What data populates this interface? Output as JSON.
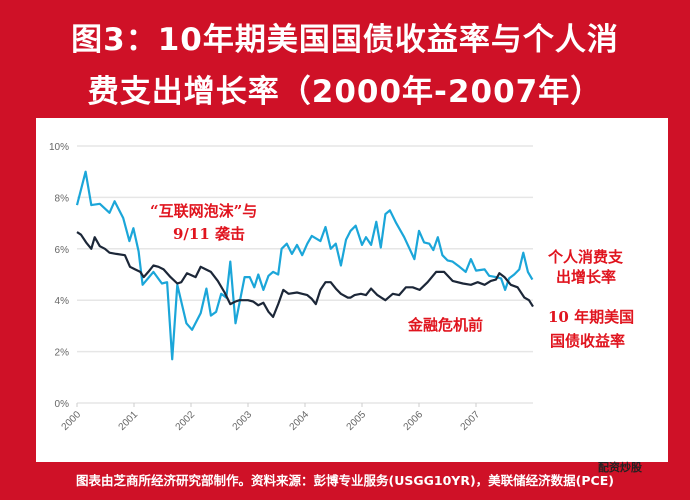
{
  "title": {
    "line1": "图3：10年期美国国债收益率与个人消",
    "line2": "费支出增长率（2000年-2007年）"
  },
  "annotations": {
    "bubble_line1": "“互联网泡沫”与",
    "bubble_line2": "9/11 袭击",
    "pre_crisis": "金融危机前",
    "pce_line1": "个人消费支",
    "pce_line2": "出增长率",
    "yield_line1": "10 年期美国",
    "yield_line2": "国债收益率"
  },
  "footer": "图表由芝商所经济研究部制作。资料来源：彭博专业服务(USGG10YR)，美联储经济数据(PCE)",
  "logo_text": "配资炒股",
  "chart_data": {
    "type": "line",
    "ylim": [
      0,
      10
    ],
    "xlim": [
      2000,
      2008
    ],
    "yticks": [
      "0%",
      "2%",
      "4%",
      "6%",
      "8%",
      "10%"
    ],
    "xticks": [
      "2000",
      "2001",
      "2002",
      "2003",
      "2004",
      "2005",
      "2006",
      "2007"
    ],
    "grid": true,
    "series": [
      {
        "name": "个人消费支出增长率",
        "color": "#1ba6d9",
        "x": [
          2000.0,
          2000.15,
          2000.25,
          2000.4,
          2000.57,
          2000.66,
          2000.81,
          2000.92,
          2000.99,
          2001.08,
          2001.15,
          2001.34,
          2001.49,
          2001.58,
          2001.67,
          2001.76,
          2001.92,
          2002.02,
          2002.17,
          2002.27,
          2002.35,
          2002.44,
          2002.53,
          2002.62,
          2002.69,
          2002.78,
          2002.94,
          2003.03,
          2003.11,
          2003.18,
          2003.27,
          2003.36,
          2003.44,
          2003.53,
          2003.59,
          2003.68,
          2003.77,
          2003.86,
          2003.95,
          2004.04,
          2004.12,
          2004.27,
          2004.36,
          2004.45,
          2004.54,
          2004.63,
          2004.72,
          2004.8,
          2004.89,
          2005.0,
          2005.07,
          2005.16,
          2005.25,
          2005.33,
          2005.41,
          2005.49,
          2005.6,
          2005.74,
          2005.92,
          2006.0,
          2006.09,
          2006.18,
          2006.25,
          2006.33,
          2006.41,
          2006.5,
          2006.59,
          2006.71,
          2006.82,
          2006.91,
          2007.0,
          2007.15,
          2007.23,
          2007.35,
          2007.44,
          2007.51,
          2007.58,
          2007.67,
          2007.76,
          2007.83,
          2007.91,
          2007.99
        ],
        "y": [
          7.7,
          9.0,
          7.7,
          7.75,
          7.4,
          7.85,
          7.2,
          6.3,
          6.8,
          5.9,
          4.6,
          5.1,
          4.65,
          4.7,
          1.7,
          4.6,
          3.1,
          2.85,
          3.5,
          4.45,
          3.4,
          3.55,
          4.25,
          4.1,
          5.5,
          3.1,
          4.9,
          4.9,
          4.5,
          5.0,
          4.4,
          4.95,
          5.1,
          5.0,
          6.0,
          6.2,
          5.8,
          6.15,
          5.75,
          6.2,
          6.5,
          6.3,
          6.85,
          6.0,
          6.2,
          5.35,
          6.35,
          6.7,
          6.9,
          6.15,
          6.45,
          6.15,
          7.05,
          6.05,
          7.35,
          7.5,
          7.0,
          6.45,
          5.6,
          6.7,
          6.25,
          6.2,
          5.95,
          6.45,
          5.75,
          5.55,
          5.5,
          5.3,
          5.1,
          5.6,
          5.15,
          5.2,
          4.95,
          4.9,
          4.85,
          4.4,
          4.85,
          5.0,
          5.2,
          5.85,
          5.1,
          4.8
        ]
      },
      {
        "name": "10年期美国国债收益率",
        "color": "#1c2738",
        "x": [
          2000.0,
          2000.07,
          2000.16,
          2000.25,
          2000.31,
          2000.4,
          2000.49,
          2000.57,
          2000.69,
          2000.84,
          2000.93,
          2001.02,
          2001.11,
          2001.17,
          2001.25,
          2001.34,
          2001.43,
          2001.52,
          2001.64,
          2001.76,
          2001.83,
          2001.93,
          2002.08,
          2002.17,
          2002.26,
          2002.35,
          2002.47,
          2002.59,
          2002.69,
          2002.78,
          2002.85,
          2003.0,
          2003.09,
          2003.18,
          2003.27,
          2003.36,
          2003.44,
          2003.53,
          2003.62,
          2003.71,
          2003.86,
          2003.95,
          2004.04,
          2004.12,
          2004.19,
          2004.27,
          2004.36,
          2004.45,
          2004.54,
          2004.63,
          2004.75,
          2004.8,
          2004.87,
          2004.98,
          2005.07,
          2005.16,
          2005.27,
          2005.41,
          2005.54,
          2005.65,
          2005.77,
          2005.89,
          2006.01,
          2006.15,
          2006.3,
          2006.44,
          2006.59,
          2006.77,
          2006.91,
          2007.03,
          2007.15,
          2007.26,
          2007.35,
          2007.41,
          2007.5,
          2007.61,
          2007.73,
          2007.85,
          2007.93,
          2008.0
        ],
        "y": [
          6.65,
          6.55,
          6.25,
          6.0,
          6.45,
          6.1,
          6.0,
          5.85,
          5.8,
          5.75,
          5.3,
          5.2,
          5.1,
          4.9,
          5.1,
          5.35,
          5.3,
          5.2,
          4.9,
          4.65,
          4.7,
          5.05,
          4.9,
          5.3,
          5.2,
          5.1,
          4.75,
          4.3,
          3.85,
          3.95,
          4.0,
          4.0,
          3.95,
          3.8,
          3.9,
          3.55,
          3.35,
          3.85,
          4.4,
          4.25,
          4.3,
          4.25,
          4.2,
          4.05,
          3.85,
          4.4,
          4.7,
          4.7,
          4.45,
          4.25,
          4.1,
          4.1,
          4.2,
          4.25,
          4.2,
          4.45,
          4.2,
          4.0,
          4.25,
          4.2,
          4.5,
          4.5,
          4.4,
          4.7,
          5.1,
          5.1,
          4.75,
          4.65,
          4.6,
          4.7,
          4.6,
          4.75,
          4.8,
          5.05,
          4.9,
          4.6,
          4.5,
          4.1,
          4.0,
          3.75
        ]
      }
    ]
  }
}
